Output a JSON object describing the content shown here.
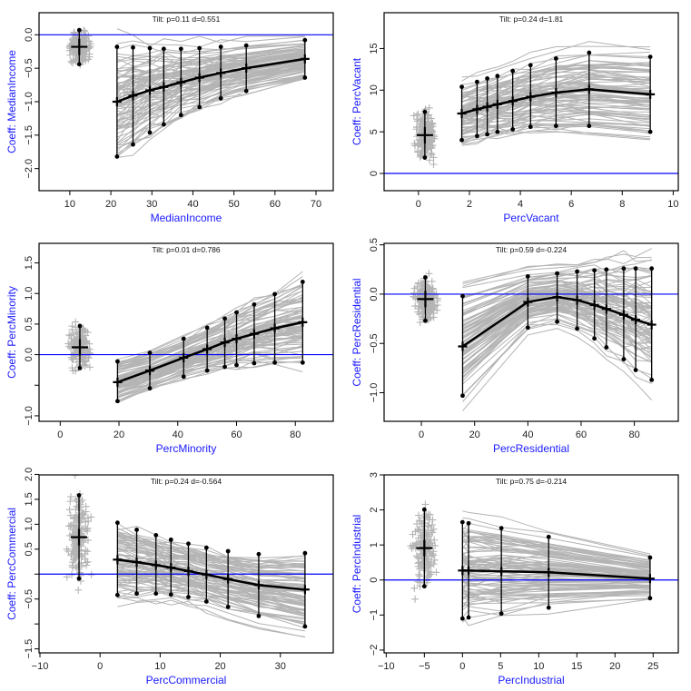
{
  "colors": {
    "axis_label": "#1a1aff",
    "zero_line": "#0000ff",
    "draws": "#b4b4b4",
    "summary": "#000000"
  },
  "chart_data": [
    {
      "type": "line",
      "title": "Tilt: p=0.11  d=0.551",
      "xlabel": "MedianIncome",
      "ylabel": "Coeff: MedianIncome",
      "xlim": [
        2.5,
        74.2
      ],
      "ylim": [
        -2.33,
        0.33
      ],
      "xticks": [
        10,
        20,
        30,
        40,
        50,
        60,
        70
      ],
      "yticks": [
        {
          "v": 0,
          "label": "0.0"
        },
        {
          "v": -0.5,
          "label": "-0.5"
        },
        {
          "v": -1,
          "label": "-1.0"
        },
        {
          "v": -1.5,
          "label": "-1.5"
        },
        {
          "v": -2,
          "label": "-2.0"
        }
      ],
      "hline": 0,
      "cluster": {
        "x": 12.3,
        "mean": -0.18,
        "hi": 0.07,
        "lo": -0.44
      },
      "x": [
        21.5,
        25.4,
        29.5,
        32.9,
        37.1,
        41.6,
        46.8,
        53.0,
        67.3
      ],
      "mean": [
        -1.0,
        -0.91,
        -0.83,
        -0.78,
        -0.71,
        -0.64,
        -0.57,
        -0.5,
        -0.36
      ],
      "hi": [
        -0.18,
        -0.19,
        -0.2,
        -0.21,
        -0.21,
        -0.2,
        -0.18,
        -0.16,
        -0.08
      ],
      "lo": [
        -1.82,
        -1.64,
        -1.46,
        -1.34,
        -1.2,
        -1.08,
        -0.95,
        -0.84,
        -0.64
      ]
    },
    {
      "type": "line",
      "title": "Tilt: p=0.24  d=1.81",
      "xlabel": "PercVacant",
      "ylabel": "Coeff: PercVacant",
      "xlim": [
        -1.35,
        10.2
      ],
      "ylim": [
        -2.07,
        19.3
      ],
      "xticks": [
        0,
        2,
        4,
        6,
        8,
        10
      ],
      "yticks": [
        {
          "v": 0,
          "label": "0"
        },
        {
          "v": 5,
          "label": "5"
        },
        {
          "v": 10,
          "label": "10"
        },
        {
          "v": 15,
          "label": "15"
        }
      ],
      "hline": 0,
      "cluster": {
        "x": 0.25,
        "mean": 4.6,
        "hi": 7.4,
        "lo": 1.9
      },
      "x": [
        1.7,
        2.3,
        2.7,
        3.1,
        3.7,
        4.4,
        5.4,
        6.7,
        9.1
      ],
      "mean": [
        7.2,
        7.7,
        8.0,
        8.3,
        8.7,
        9.2,
        9.7,
        10.1,
        9.5
      ],
      "hi": [
        10.4,
        11.0,
        11.4,
        11.7,
        12.3,
        13.0,
        13.8,
        14.5,
        14.0
      ],
      "lo": [
        4.0,
        4.5,
        4.7,
        5.0,
        5.3,
        5.6,
        5.7,
        5.7,
        5.0
      ]
    },
    {
      "type": "line",
      "title": "Tilt: p=0.01  d=0.786",
      "xlabel": "PercMinority",
      "ylabel": "Coeff:  PercMinority",
      "xlim": [
        -7.2,
        92.9
      ],
      "ylim": [
        -1.09,
        1.82
      ],
      "xticks": [
        0,
        20,
        40,
        60,
        80
      ],
      "yticks": [
        {
          "v": -1,
          "label": "-1.0"
        },
        {
          "v": -0.5,
          "label": ""
        },
        {
          "v": 0,
          "label": "0.0"
        },
        {
          "v": 0.5,
          "label": "0.5"
        },
        {
          "v": 1,
          "label": "1.0"
        },
        {
          "v": 1.5,
          "label": "1.5"
        }
      ],
      "hline": 0,
      "cluster": {
        "x": 6.7,
        "mean": 0.12,
        "hi": 0.47,
        "lo": -0.22
      },
      "x": [
        19.5,
        30.5,
        42,
        50,
        56,
        60,
        66,
        73,
        82.5
      ],
      "mean": [
        -0.45,
        -0.26,
        -0.05,
        0.09,
        0.2,
        0.26,
        0.34,
        0.43,
        0.53
      ],
      "hi": [
        -0.11,
        0.03,
        0.26,
        0.44,
        0.59,
        0.69,
        0.82,
        0.99,
        1.19
      ],
      "lo": [
        -0.76,
        -0.55,
        -0.36,
        -0.26,
        -0.2,
        -0.17,
        -0.14,
        -0.13,
        -0.13
      ]
    },
    {
      "type": "line",
      "title": "Tilt: p=0.59  d=-0.224",
      "xlabel": "PercResidential",
      "ylabel": "Coeff: PercResidential",
      "xlim": [
        -14.0,
        96.5
      ],
      "ylim": [
        -1.29,
        0.515
      ],
      "xticks": [
        0,
        20,
        40,
        60,
        80
      ],
      "yticks": [
        {
          "v": -1,
          "label": "-1.0"
        },
        {
          "v": -0.5,
          "label": "-0.5"
        },
        {
          "v": 0,
          "label": "0.0"
        },
        {
          "v": 0.5,
          "label": "0.5"
        }
      ],
      "hline": 0,
      "cluster": {
        "x": 1.5,
        "mean": -0.05,
        "hi": 0.17,
        "lo": -0.27
      },
      "x": [
        15.5,
        40,
        51,
        58.5,
        65,
        69.5,
        76,
        80.5,
        86.5
      ],
      "mean": [
        -0.53,
        -0.08,
        -0.03,
        -0.06,
        -0.11,
        -0.15,
        -0.21,
        -0.26,
        -0.31
      ],
      "hi": [
        -0.02,
        0.18,
        0.21,
        0.23,
        0.24,
        0.25,
        0.26,
        0.26,
        0.26
      ],
      "lo": [
        -1.03,
        -0.34,
        -0.28,
        -0.35,
        -0.45,
        -0.54,
        -0.66,
        -0.77,
        -0.87
      ]
    },
    {
      "type": "line",
      "title": "Tilt: p=0.24  d=-0.564",
      "xlabel": "PercCommercial",
      "ylabel": "Coeff: PercCommercial",
      "xlim": [
        -10.15,
        38.8
      ],
      "ylim": [
        -1.58,
        1.99
      ],
      "xticks": [
        -10,
        0,
        10,
        20,
        30
      ],
      "yticks": [
        {
          "v": -1.5,
          "label": "-1.5"
        },
        {
          "v": -1,
          "label": ""
        },
        {
          "v": -0.5,
          "label": "-0.5"
        },
        {
          "v": 0,
          "label": ""
        },
        {
          "v": 0.5,
          "label": "0.5"
        },
        {
          "v": 1,
          "label": "1.0"
        },
        {
          "v": 1.5,
          "label": "1.5"
        },
        {
          "v": 2,
          "label": "2.0"
        }
      ],
      "hline": 0,
      "cluster": {
        "x": -3.5,
        "mean": 0.74,
        "hi": 1.58,
        "lo": -0.09
      },
      "x": [
        2.9,
        6.1,
        9.3,
        11.8,
        14.7,
        17.7,
        21.3,
        26.4,
        34.1
      ],
      "mean": [
        0.29,
        0.24,
        0.18,
        0.13,
        0.06,
        -0.01,
        -0.1,
        -0.22,
        -0.31
      ],
      "hi": [
        1.03,
        0.89,
        0.78,
        0.69,
        0.61,
        0.53,
        0.46,
        0.4,
        0.42
      ],
      "lo": [
        -0.42,
        -0.39,
        -0.39,
        -0.41,
        -0.46,
        -0.55,
        -0.66,
        -0.84,
        -1.05
      ]
    },
    {
      "type": "line",
      "title": "Tilt: p=0.75  d=-0.214",
      "xlabel": "PercIndustrial",
      "ylabel": "Coeff: PercIndustrial",
      "xlim": [
        -10.28,
        28.3
      ],
      "ylim": [
        -2.08,
        3.0
      ],
      "xticks": [
        -10,
        -5,
        0,
        5,
        10,
        15,
        20,
        25
      ],
      "yticks": [
        {
          "v": -2,
          "label": "-2"
        },
        {
          "v": -1,
          "label": "-1"
        },
        {
          "v": 0,
          "label": "0"
        },
        {
          "v": 1,
          "label": "1"
        },
        {
          "v": 2,
          "label": "2"
        },
        {
          "v": 3,
          "label": "3"
        }
      ],
      "hline": 0,
      "cluster": {
        "x": -5,
        "mean": 0.91,
        "hi": 2.01,
        "lo": -0.18
      },
      "x": [
        0,
        0.8,
        5.1,
        11.3,
        24.6
      ],
      "mean": [
        0.27,
        0.27,
        0.25,
        0.22,
        0.04
      ],
      "hi": [
        1.65,
        1.62,
        1.48,
        1.23,
        0.64
      ],
      "lo": [
        -1.1,
        -1.07,
        -0.96,
        -0.79,
        -0.52
      ]
    }
  ]
}
